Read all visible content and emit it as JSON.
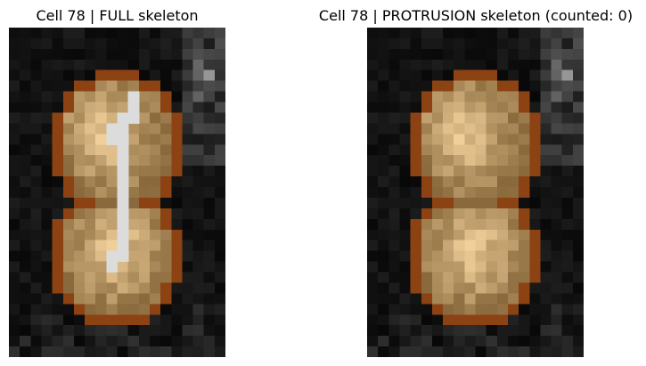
{
  "figure": {
    "left_title": "Cell 78 | FULL skeleton",
    "right_title": "Cell 78 | PROTRUSION skeleton (counted: 0)"
  },
  "colors": {
    "background": "#0c0c0c",
    "outline": "#8c4212",
    "skeleton": "#dcdcdc",
    "cell_dark": "#8a6a3c",
    "cell_light": "#f0cf9a"
  }
}
